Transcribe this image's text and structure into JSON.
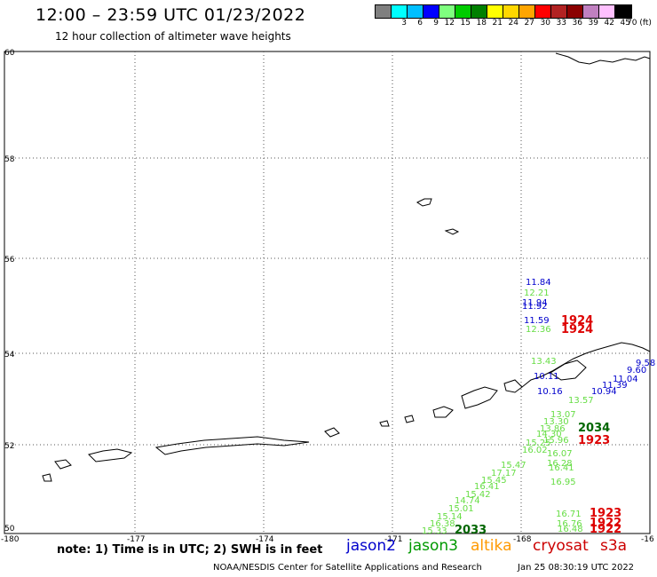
{
  "header": {
    "title": "12:00 – 23:59 UTC 01/23/2022",
    "subtitle": "12 hour collection of altimeter wave heights"
  },
  "legend": {
    "colors": [
      "#7f7f7f",
      "#00ffff",
      "#00bfff",
      "#0000ff",
      "#7fff7f",
      "#00cc00",
      "#008000",
      "#ffff00",
      "#ffd700",
      "#ffa500",
      "#ff0000",
      "#b22222",
      "#8b0000",
      "#c080c0",
      "#ffc0ff",
      "#000000"
    ],
    "labels": [
      "",
      "3",
      "6",
      "9",
      "12",
      "15",
      "18",
      "21",
      "24",
      "27",
      "30",
      "33",
      "36",
      "39",
      "42",
      "45",
      "70"
    ],
    "unit": "(ft)"
  },
  "map": {
    "lon_labels": [
      "-180",
      "-177",
      "-174",
      "-171",
      "-168",
      "-16"
    ],
    "lat_labels": [
      "60",
      "58",
      "56",
      "54",
      "52",
      "50"
    ],
    "measurements": [
      {
        "t": "11.84",
        "c": "#0000cc"
      },
      {
        "t": "12.21",
        "c": "#66dd44"
      },
      {
        "t": "11.94",
        "c": "#0000cc"
      },
      {
        "t": "11.92",
        "c": "#0000cc"
      },
      {
        "t": "11.59",
        "c": "#0000cc"
      },
      {
        "t": "12.36",
        "c": "#66dd44"
      },
      {
        "t": "13.43",
        "c": "#66dd44"
      },
      {
        "t": "10.11",
        "c": "#0000cc"
      },
      {
        "t": "10.16",
        "c": "#0000cc"
      },
      {
        "t": "9.58",
        "c": "#0000cc"
      },
      {
        "t": "9.60",
        "c": "#0000cc"
      },
      {
        "t": "11.04",
        "c": "#0000cc"
      },
      {
        "t": "11.39",
        "c": "#0000cc"
      },
      {
        "t": "10.94",
        "c": "#0000cc"
      },
      {
        "t": "13.57",
        "c": "#66dd44"
      },
      {
        "t": "13.07",
        "c": "#66dd44"
      },
      {
        "t": "13.30",
        "c": "#66dd44"
      },
      {
        "t": "13.86",
        "c": "#66dd44"
      },
      {
        "t": "14.30",
        "c": "#66dd44"
      },
      {
        "t": "15.25",
        "c": "#66dd44"
      },
      {
        "t": "15.96",
        "c": "#66dd44"
      },
      {
        "t": "16.02",
        "c": "#66dd44"
      },
      {
        "t": "16.07",
        "c": "#66dd44"
      },
      {
        "t": "15.47",
        "c": "#66dd44"
      },
      {
        "t": "16.28",
        "c": "#66dd44"
      },
      {
        "t": "16.41",
        "c": "#66dd44"
      },
      {
        "t": "17.17",
        "c": "#66dd44"
      },
      {
        "t": "15.45",
        "c": "#66dd44"
      },
      {
        "t": "16.41",
        "c": "#66dd44"
      },
      {
        "t": "16.95",
        "c": "#66dd44"
      },
      {
        "t": "15.42",
        "c": "#66dd44"
      },
      {
        "t": "14.74",
        "c": "#66dd44"
      },
      {
        "t": "15.01",
        "c": "#66dd44"
      },
      {
        "t": "15.14",
        "c": "#66dd44"
      },
      {
        "t": "16.71",
        "c": "#66dd44"
      },
      {
        "t": "16.38",
        "c": "#66dd44"
      },
      {
        "t": "16.76",
        "c": "#66dd44"
      },
      {
        "t": "15.33",
        "c": "#66dd44"
      },
      {
        "t": "16.48",
        "c": "#66dd44"
      }
    ],
    "times": [
      {
        "t": "1924",
        "c": "#dd0000"
      },
      {
        "t": "1924",
        "c": "#dd0000"
      },
      {
        "t": "2034",
        "c": "#006600"
      },
      {
        "t": "1923",
        "c": "#dd0000"
      },
      {
        "t": "2033",
        "c": "#006600"
      },
      {
        "t": "1923",
        "c": "#dd0000"
      },
      {
        "t": "1922",
        "c": "#dd0000"
      },
      {
        "t": "1922",
        "c": "#dd0000"
      }
    ]
  },
  "footer": {
    "note": "note: 1) Time is in UTC; 2) SWH is in feet",
    "satellites": [
      {
        "name": "jason2",
        "color": "#0000cc"
      },
      {
        "name": "jason3",
        "color": "#009900"
      },
      {
        "name": "altika",
        "color": "#ff9900"
      },
      {
        "name": "cryosat",
        "color": "#cc0000"
      },
      {
        "name": "s3a",
        "color": "#cc0000"
      }
    ],
    "credit_left": "NOAA/NESDIS Center for Satellite Applications and Research",
    "credit_right": "Jan 25 08:30:19 UTC 2022"
  }
}
